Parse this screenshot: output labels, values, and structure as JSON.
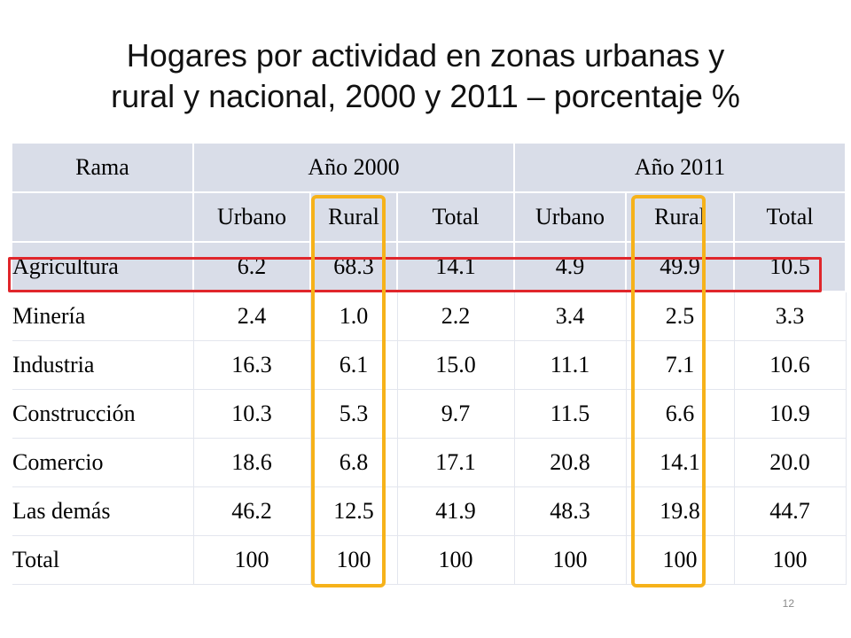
{
  "title": {
    "line1": "Hogares por actividad en zonas urbanas y",
    "line2": "rural y nacional, 2000 y 2011 – porcentaje %"
  },
  "table": {
    "header1": {
      "rama": "Rama",
      "year2000": "Año 2000",
      "year2011": "Año 2011"
    },
    "header2": [
      "",
      "Urbano",
      "Rural",
      "Total",
      "Urbano",
      "Rural",
      "Total"
    ],
    "rows": [
      {
        "rama": "Agricultura",
        "cells": [
          "6.2",
          "68.3",
          "14.1",
          "4.9",
          "49.9",
          "10.5"
        ]
      },
      {
        "rama": "Minería",
        "cells": [
          "2.4",
          "1.0",
          "2.2",
          "3.4",
          "2.5",
          "3.3"
        ]
      },
      {
        "rama": "Industria",
        "cells": [
          "16.3",
          "6.1",
          "15.0",
          "11.1",
          "7.1",
          "10.6"
        ]
      },
      {
        "rama": "Construcción",
        "cells": [
          "10.3",
          "5.3",
          "9.7",
          "11.5",
          "6.6",
          "10.9"
        ]
      },
      {
        "rama": "Comercio",
        "cells": [
          "18.6",
          "6.8",
          "17.1",
          "20.8",
          "14.1",
          "20.0"
        ]
      },
      {
        "rama": "Las demás",
        "cells": [
          "46.2",
          "12.5",
          "41.9",
          "48.3",
          "19.8",
          "44.7"
        ]
      },
      {
        "rama": "Total",
        "cells": [
          "100",
          "100",
          "100",
          "100",
          "100",
          "100"
        ]
      }
    ]
  },
  "highlights": {
    "row_color": "#e0262b",
    "column_color": "#f6b21a"
  },
  "page_number": "12"
}
